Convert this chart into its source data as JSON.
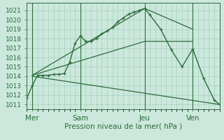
{
  "background_color": "#cce8dc",
  "grid_color": "#99ccbb",
  "line_color": "#2d6b3c",
  "title": "Pression niveau de la mer( hPa )",
  "ylabel_fontsize": 6.5,
  "xlabel_fontsize": 7.5,
  "yticks": [
    1011,
    1012,
    1013,
    1014,
    1015,
    1016,
    1017,
    1018,
    1019,
    1020,
    1021
  ],
  "ylim": [
    1010.5,
    1021.8
  ],
  "xlim": [
    0,
    108
  ],
  "xtick_positions": [
    3,
    30,
    66,
    93
  ],
  "xtick_labels": [
    "Mer",
    "Sam",
    "Jeu",
    "Ven"
  ],
  "vlines": [
    3,
    30,
    66,
    93
  ],
  "line_main": {
    "x": [
      0,
      3,
      6,
      9,
      12,
      15,
      18,
      21,
      24,
      27,
      30,
      33,
      36,
      39,
      42,
      45,
      48,
      51,
      54,
      57,
      60,
      63,
      66,
      69,
      75,
      81,
      87,
      93,
      99,
      105,
      108
    ],
    "y": [
      1011.7,
      1013.0,
      1014.1,
      1014.1,
      1014.1,
      1014.2,
      1014.2,
      1014.3,
      1015.5,
      1017.5,
      1018.3,
      1017.7,
      1017.7,
      1018.0,
      1018.5,
      1018.8,
      1019.2,
      1019.8,
      1020.2,
      1020.6,
      1020.8,
      1021.0,
      1021.2,
      1020.5,
      1019.0,
      1016.8,
      1015.0,
      1016.9,
      1013.8,
      1011.5,
      1011.0
    ]
  },
  "line_upper": {
    "x": [
      3,
      66,
      93
    ],
    "y": [
      1014.1,
      1021.2,
      1019.0
    ]
  },
  "line_mid": {
    "x": [
      3,
      66,
      93
    ],
    "y": [
      1014.1,
      1017.7,
      1017.7
    ]
  },
  "line_lower": {
    "x": [
      3,
      108
    ],
    "y": [
      1014.0,
      1011.0
    ]
  }
}
